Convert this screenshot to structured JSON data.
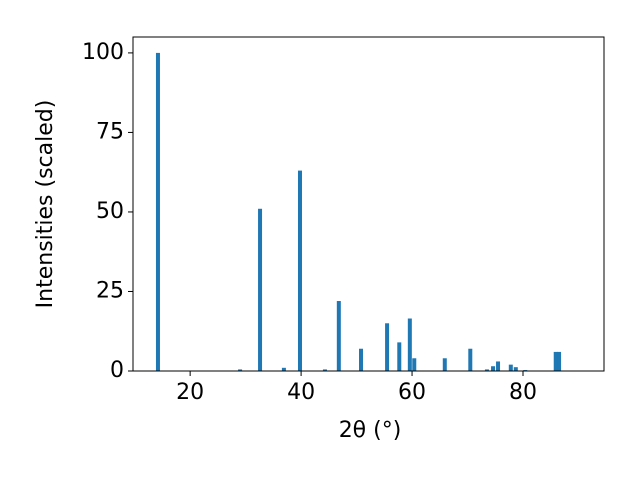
{
  "chart_data": {
    "type": "bar",
    "xlabel": "2θ (°)",
    "ylabel": "Intensities (scaled)",
    "x": [
      14.2,
      29.0,
      32.6,
      36.9,
      39.8,
      44.3,
      46.8,
      50.8,
      55.5,
      57.7,
      59.6,
      60.4,
      65.9,
      70.5,
      73.5,
      74.6,
      75.5,
      77.8,
      78.7,
      80.4,
      85.9,
      86.5
    ],
    "values": [
      100,
      0.5,
      51,
      1,
      63,
      0.5,
      22,
      7,
      15,
      9,
      16.5,
      4,
      4,
      7,
      0.5,
      1.5,
      3,
      2,
      1.2,
      0.3,
      6,
      6
    ],
    "color": "#1f77b4",
    "xlim": [
      9.7,
      94.6
    ],
    "ylim": [
      0,
      105
    ],
    "xticks": [
      20,
      40,
      60,
      80
    ],
    "yticks": [
      0,
      25,
      50,
      75,
      100
    ]
  }
}
